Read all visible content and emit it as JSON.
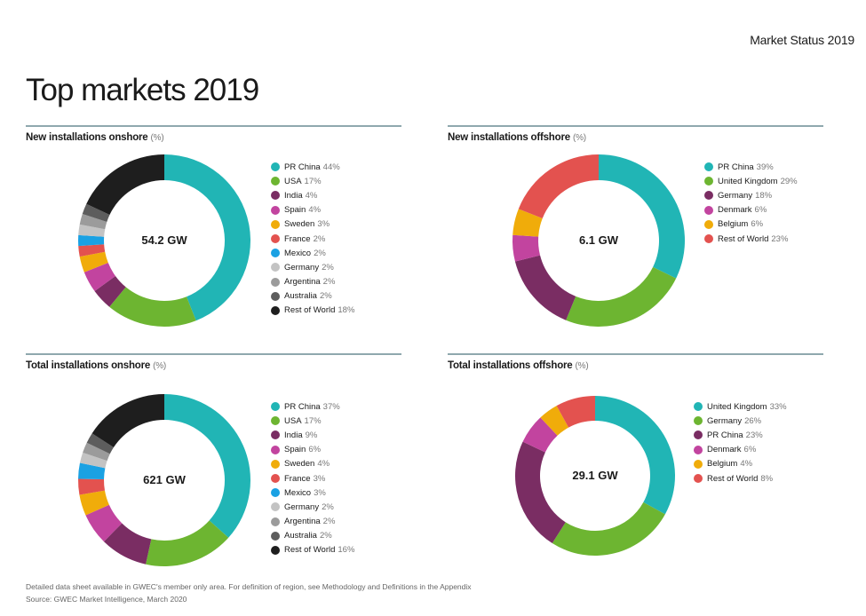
{
  "header": {
    "section": "Market Status 2019",
    "title": "Top markets 2019"
  },
  "colors": {
    "teal": "#21b5b5",
    "green": "#6db531",
    "plum": "#7a2d63",
    "magenta": "#c2449f",
    "amber": "#f0ac0a",
    "red": "#e3524f",
    "blue": "#1aa1e3",
    "lightgrey": "#c3c3c3",
    "midgrey": "#9b9b9b",
    "darkgrey": "#5d5d5d",
    "black": "#1e1e1e",
    "rule": "#8fa8ae"
  },
  "chart_data": [
    {
      "type": "pie",
      "title": "New installations onshore",
      "unit": "(%)",
      "center_label": "54.2 GW",
      "categories": [
        "PR China",
        "USA",
        "India",
        "Spain",
        "Sweden",
        "France",
        "Mexico",
        "Germany",
        "Argentina",
        "Australia",
        "Rest of World"
      ],
      "values": [
        44,
        17,
        4,
        4,
        3,
        2,
        2,
        2,
        2,
        2,
        18
      ],
      "pct_labels": [
        "44%",
        "17%",
        "4%",
        "4%",
        "3%",
        "2%",
        "2%",
        "2%",
        "2%",
        "2%",
        "18%"
      ],
      "colors": [
        "#21b5b5",
        "#6db531",
        "#7a2d63",
        "#c2449f",
        "#f0ac0a",
        "#e3524f",
        "#1aa1e3",
        "#c3c3c3",
        "#9b9b9b",
        "#5d5d5d",
        "#1e1e1e"
      ],
      "donut": true
    },
    {
      "type": "pie",
      "title": "New installations offshore",
      "unit": "(%)",
      "center_label": "6.1 GW",
      "categories": [
        "PR China",
        "United Kingdom",
        "Germany",
        "Denmark",
        "Belgium",
        "Rest of World"
      ],
      "values": [
        39,
        29,
        18,
        6,
        6,
        23
      ],
      "pct_labels": [
        "39%",
        "29%",
        "18%",
        "6%",
        "6%",
        "23%"
      ],
      "colors": [
        "#21b5b5",
        "#6db531",
        "#7a2d63",
        "#c2449f",
        "#f0ac0a",
        "#e3524f"
      ],
      "donut": true
    },
    {
      "type": "pie",
      "title": "Total installations onshore",
      "unit": "(%)",
      "center_label": "621 GW",
      "categories": [
        "PR China",
        "USA",
        "India",
        "Spain",
        "Sweden",
        "France",
        "Mexico",
        "Germany",
        "Argentina",
        "Australia",
        "Rest of World"
      ],
      "values": [
        37,
        17,
        9,
        6,
        4,
        3,
        3,
        2,
        2,
        2,
        16
      ],
      "pct_labels": [
        "37%",
        "17%",
        "9%",
        "6%",
        "4%",
        "3%",
        "3%",
        "2%",
        "2%",
        "2%",
        "16%"
      ],
      "colors": [
        "#21b5b5",
        "#6db531",
        "#7a2d63",
        "#c2449f",
        "#f0ac0a",
        "#e3524f",
        "#1aa1e3",
        "#c3c3c3",
        "#9b9b9b",
        "#5d5d5d",
        "#1e1e1e"
      ],
      "donut": true
    },
    {
      "type": "pie",
      "title": "Total installations offshore",
      "unit": "(%)",
      "center_label": "29.1 GW",
      "categories": [
        "United Kingdom",
        "Germany",
        "PR China",
        "Denmark",
        "Belgium",
        "Rest of World"
      ],
      "values": [
        33,
        26,
        23,
        6,
        4,
        8
      ],
      "pct_labels": [
        "33%",
        "26%",
        "23%",
        "6%",
        "4%",
        "8%"
      ],
      "colors": [
        "#21b5b5",
        "#6db531",
        "#7a2d63",
        "#c2449f",
        "#f0ac0a",
        "#e3524f"
      ],
      "donut": true
    }
  ],
  "footnotes": [
    "Detailed data sheet available in GWEC's member only area. For definition of region, see Methodology and Definitions in the Appendix",
    "Source: GWEC Market Intelligence, March 2020"
  ]
}
